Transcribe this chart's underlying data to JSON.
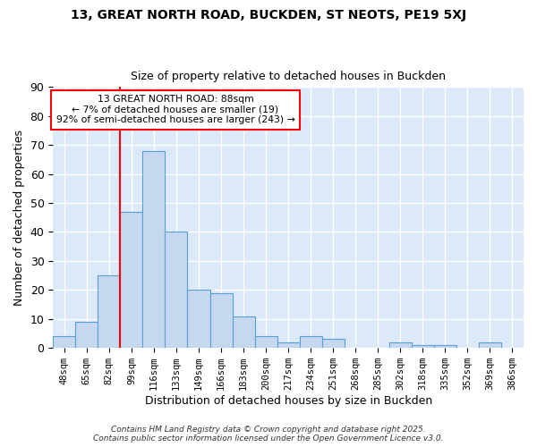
{
  "title1": "13, GREAT NORTH ROAD, BUCKDEN, ST NEOTS, PE19 5XJ",
  "title2": "Size of property relative to detached houses in Buckden",
  "xlabel": "Distribution of detached houses by size in Buckden",
  "ylabel": "Number of detached properties",
  "bar_labels": [
    "48sqm",
    "65sqm",
    "82sqm",
    "99sqm",
    "116sqm",
    "133sqm",
    "149sqm",
    "166sqm",
    "183sqm",
    "200sqm",
    "217sqm",
    "234sqm",
    "251sqm",
    "268sqm",
    "285sqm",
    "302sqm",
    "318sqm",
    "335sqm",
    "352sqm",
    "369sqm",
    "386sqm"
  ],
  "bar_values": [
    4,
    9,
    25,
    47,
    68,
    40,
    20,
    19,
    11,
    4,
    2,
    4,
    3,
    0,
    0,
    2,
    1,
    1,
    0,
    2,
    0
  ],
  "bar_color": "#c5d8f0",
  "bar_edge_color": "#5a9fd4",
  "vline_x_index": 2,
  "vline_color": "red",
  "annotation_text": "13 GREAT NORTH ROAD: 88sqm\n← 7% of detached houses are smaller (19)\n92% of semi-detached houses are larger (243) →",
  "annotation_box_color": "white",
  "annotation_box_edge": "red",
  "ylim": [
    0,
    90
  ],
  "yticks": [
    0,
    10,
    20,
    30,
    40,
    50,
    60,
    70,
    80,
    90
  ],
  "plot_bg_color": "#dce9f8",
  "fig_bg_color": "#ffffff",
  "grid_color": "#ffffff",
  "footer": "Contains HM Land Registry data © Crown copyright and database right 2025.\nContains public sector information licensed under the Open Government Licence v3.0."
}
